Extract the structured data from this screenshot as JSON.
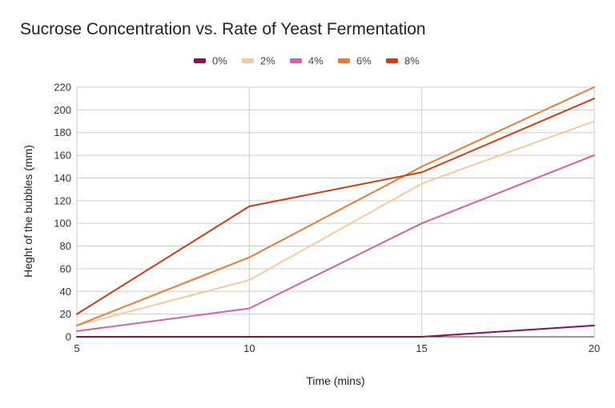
{
  "chart_data": {
    "type": "line",
    "title": "Sucrose Concentration vs. Rate of Yeast Fermentation",
    "xlabel": "Time (mins)",
    "ylabel": "Heght of the bubbles (mm)",
    "x": [
      5,
      10,
      15,
      20
    ],
    "xlim": [
      5,
      20
    ],
    "ylim": [
      0,
      220
    ],
    "xticks": [
      5,
      10,
      15,
      20
    ],
    "yticks": [
      0,
      20,
      40,
      60,
      80,
      100,
      120,
      140,
      160,
      180,
      200,
      220
    ],
    "grid": true,
    "legend_position": "top",
    "series": [
      {
        "name": "0%",
        "color": "#8e0b5c",
        "values": [
          0,
          0,
          0,
          10
        ]
      },
      {
        "name": "2%",
        "color": "#f5c99a",
        "values": [
          10,
          50,
          135,
          190
        ]
      },
      {
        "name": "4%",
        "color": "#d161a8",
        "values": [
          5,
          25,
          100,
          160
        ]
      },
      {
        "name": "6%",
        "color": "#eb7a2e",
        "values": [
          10,
          70,
          150,
          220
        ]
      },
      {
        "name": "8%",
        "color": "#d03c10",
        "values": [
          20,
          115,
          145,
          210
        ]
      }
    ]
  }
}
